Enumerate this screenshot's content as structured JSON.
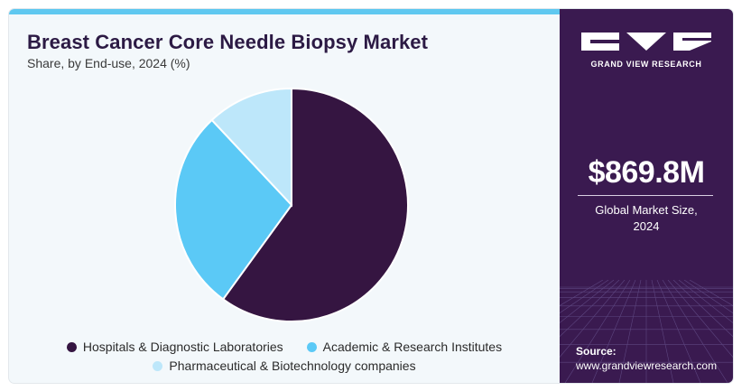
{
  "colors": {
    "accent_bar": "#5fc8f0",
    "sidebar": "#3a1a50",
    "hospitals": "#351541",
    "academic": "#5bc9f6",
    "pharma": "#bde7fa"
  },
  "header": {
    "title": "Breast Cancer Core Needle Biopsy Market",
    "subtitle": "Share, by End-use, 2024 (%)"
  },
  "chart_data": {
    "type": "pie",
    "title": "Breast Cancer Core Needle Biopsy Market",
    "subtitle": "Share, by End-use, 2024 (%)",
    "slices": [
      {
        "label": "Hospitals & Diagnostic Laboratories",
        "value": 60,
        "color": "#351541"
      },
      {
        "label": "Academic & Research Institutes",
        "value": 28,
        "color": "#5bc9f6"
      },
      {
        "label": "Pharmaceutical & Biotechnology companies",
        "value": 12,
        "color": "#bde7fa"
      }
    ],
    "start": "12 o'clock",
    "direction": "clockwise",
    "legend_placement": "bottom"
  },
  "legend": {
    "items": [
      {
        "label": "Hospitals & Diagnostic Laboratories",
        "color": "#351541"
      },
      {
        "label": "Academic & Research Institutes",
        "color": "#5bc9f6"
      },
      {
        "label": "Pharmaceutical & Biotechnology companies",
        "color": "#bde7fa"
      }
    ]
  },
  "sidebar": {
    "brand": "GRAND VIEW RESEARCH",
    "market_size": "$869.8M",
    "market_label_line1": "Global Market Size,",
    "market_label_line2": "2024",
    "source_label": "Source:",
    "source_url": "www.grandviewresearch.com"
  }
}
